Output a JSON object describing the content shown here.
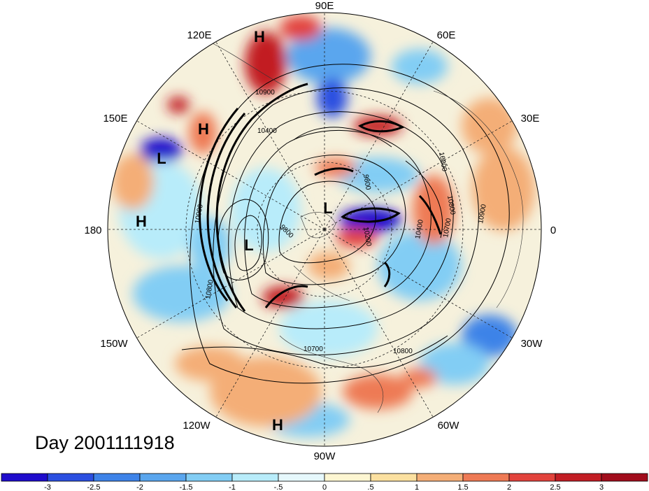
{
  "title": "Day 2001111918",
  "longitude_labels": [
    {
      "text": "90E",
      "deg": 90
    },
    {
      "text": "60E",
      "deg": 60
    },
    {
      "text": "30E",
      "deg": 30
    },
    {
      "text": "0",
      "deg": 0
    },
    {
      "text": "30W",
      "deg": -30
    },
    {
      "text": "60W",
      "deg": -60
    },
    {
      "text": "90W",
      "deg": -90
    },
    {
      "text": "120W",
      "deg": -120
    },
    {
      "text": "150W",
      "deg": -150
    },
    {
      "text": "180",
      "deg": 180
    },
    {
      "text": "150E",
      "deg": 150
    },
    {
      "text": "120E",
      "deg": 120
    }
  ],
  "pressure_systems": [
    {
      "text": "H"
    },
    {
      "text": "H"
    },
    {
      "text": "L"
    },
    {
      "text": "H"
    },
    {
      "text": "L"
    },
    {
      "text": "L"
    },
    {
      "text": "H"
    }
  ],
  "contour_labels": [
    "10900",
    "10400",
    "9800",
    "9800",
    "10200",
    "10800",
    "10800",
    "10400",
    "10700",
    "10900",
    "10900",
    "10800",
    "10700",
    "10800"
  ],
  "colorbar": {
    "tick_labels": [
      "-3",
      "-2.5",
      "-2",
      "-1.5",
      "-1",
      "-.5",
      "0",
      ".5",
      "1",
      "1.5",
      "2",
      "2.5",
      "3"
    ],
    "colors": [
      "#1f0ccc",
      "#2b4fe0",
      "#3e83e8",
      "#5aa6ee",
      "#82cdf4",
      "#b8ecfa",
      "#e6f8fc",
      "#fdf6d2",
      "#fbe0a0",
      "#f4ae77",
      "#ee7a55",
      "#e2433c",
      "#c21d24",
      "#a10d1c"
    ]
  }
}
